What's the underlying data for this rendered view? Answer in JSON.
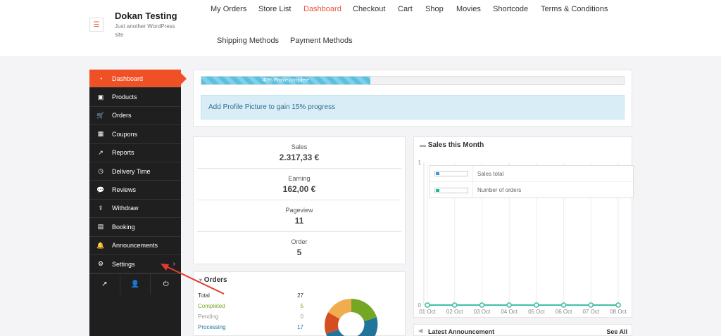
{
  "site": {
    "title": "Dokan Testing",
    "description": "Just another WordPress site",
    "menu_icon": "hamburger-icon"
  },
  "nav": [
    {
      "label": "My Orders",
      "active": false
    },
    {
      "label": "Store List",
      "active": false
    },
    {
      "label": "Dashboard",
      "active": true
    },
    {
      "label": "Checkout",
      "active": false
    },
    {
      "label": "Cart",
      "active": false
    },
    {
      "label": "Shop",
      "active": false
    },
    {
      "label": "Movies",
      "active": false
    },
    {
      "label": "Shortcode",
      "active": false
    },
    {
      "label": "Terms & Conditions",
      "active": false
    },
    {
      "label": "Shipping Methods",
      "active": false
    },
    {
      "label": "Payment Methods",
      "active": false
    }
  ],
  "sidebar": {
    "items": [
      {
        "label": "Dashboard",
        "icon": "tachometer-icon",
        "active": true
      },
      {
        "label": "Products",
        "icon": "briefcase-icon"
      },
      {
        "label": "Orders",
        "icon": "cart-icon"
      },
      {
        "label": "Coupons",
        "icon": "gift-icon"
      },
      {
        "label": "Reports",
        "icon": "line-chart-icon"
      },
      {
        "label": "Delivery Time",
        "icon": "clock-icon"
      },
      {
        "label": "Reviews",
        "icon": "comments-icon"
      },
      {
        "label": "Withdraw",
        "icon": "upload-icon"
      },
      {
        "label": "Booking",
        "icon": "calendar-icon"
      },
      {
        "label": "Announcements",
        "icon": "bell-icon"
      },
      {
        "label": "Settings",
        "icon": "gear-icon",
        "has_submenu": true
      }
    ],
    "bottom": [
      "external-link-icon",
      "user-icon",
      "power-icon"
    ]
  },
  "profile": {
    "progress_percent": 40,
    "progress_label": "40% Profile complete",
    "tip": "Add Profile Picture to gain 15% progress"
  },
  "stats": [
    {
      "label": "Sales",
      "value": "2.317,33 €"
    },
    {
      "label": "Earning",
      "value": "162,00 €"
    },
    {
      "label": "Pageview",
      "value": "11"
    },
    {
      "label": "Order",
      "value": "5"
    }
  ],
  "orders": {
    "title": "Orders",
    "rows": [
      {
        "label": "Total",
        "value": "27",
        "color": "#222222"
      },
      {
        "label": "Completed",
        "value": "5",
        "color": "#73a724"
      },
      {
        "label": "Pending",
        "value": "0",
        "color": "#999999"
      },
      {
        "label": "Processing",
        "value": "17",
        "color": "#21759b"
      }
    ],
    "donut_colors": [
      "#73a724",
      "#21759b",
      "#d54e21",
      "#f0ad4e"
    ]
  },
  "sales_chart": {
    "title": "Sales this Month",
    "legend": [
      {
        "label": "Sales total",
        "color": "#3498db"
      },
      {
        "label": "Number of orders",
        "color": "#1abc9c"
      }
    ]
  },
  "chart_data": {
    "type": "line",
    "title": "Sales this Month",
    "categories": [
      "01 Oct",
      "02 Oct",
      "03 Oct",
      "04 Oct",
      "05 Oct",
      "06 Oct",
      "07 Oct",
      "08 Oct"
    ],
    "series": [
      {
        "name": "Sales total",
        "values": [
          0,
          0,
          0,
          0,
          0,
          0,
          0,
          0
        ]
      },
      {
        "name": "Number of orders",
        "values": [
          0,
          0,
          0,
          0,
          0,
          0,
          0,
          0
        ]
      }
    ],
    "y_ticks": [
      "0",
      "1"
    ],
    "ylim": [
      0,
      1
    ],
    "line_color": "#3fc1a0"
  },
  "announcement": {
    "title": "Latest Announcement",
    "see_all": "See All"
  }
}
